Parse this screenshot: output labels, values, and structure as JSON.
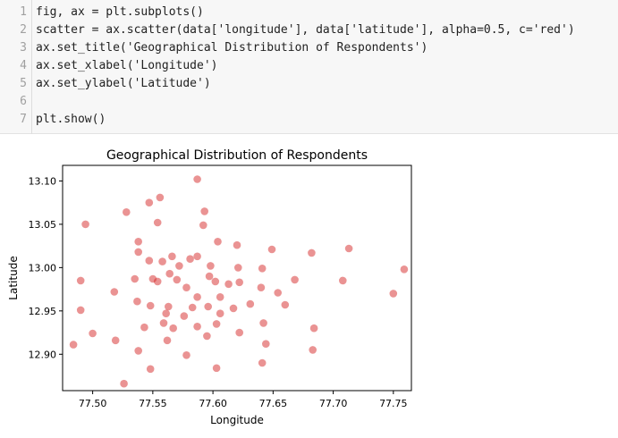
{
  "code_cell": {
    "line_numbers": [
      "1",
      "2",
      "3",
      "4",
      "5",
      "6",
      "7"
    ],
    "lines": [
      "fig, ax = plt.subplots()",
      "scatter = ax.scatter(data['longitude'], data['latitude'], alpha=0.5, c='red')",
      "ax.set_title('Geographical Distribution of Respondents')",
      "ax.set_xlabel('Longitude')",
      "ax.set_ylabel('Latitude')",
      "",
      "plt.show()"
    ]
  },
  "chart_data": {
    "type": "scatter",
    "title": "Geographical Distribution of Respondents",
    "xlabel": "Longitude",
    "ylabel": "Latitude",
    "xlim": [
      77.475,
      77.765
    ],
    "ylim": [
      12.858,
      13.118
    ],
    "xticks": [
      "77.50",
      "77.55",
      "77.60",
      "77.65",
      "77.70",
      "77.75"
    ],
    "yticks": [
      "12.90",
      "12.95",
      "13.00",
      "13.05",
      "13.10"
    ],
    "point_color": "#d62728",
    "alpha": 0.5,
    "grid": false,
    "points": [
      [
        77.587,
        13.102
      ],
      [
        77.528,
        13.064
      ],
      [
        77.547,
        13.075
      ],
      [
        77.556,
        13.081
      ],
      [
        77.593,
        13.065
      ],
      [
        77.592,
        13.049
      ],
      [
        77.494,
        13.05
      ],
      [
        77.554,
        13.052
      ],
      [
        77.538,
        13.03
      ],
      [
        77.604,
        13.03
      ],
      [
        77.62,
        13.026
      ],
      [
        77.649,
        13.021
      ],
      [
        77.713,
        13.022
      ],
      [
        77.538,
        13.018
      ],
      [
        77.682,
        13.017
      ],
      [
        77.566,
        13.013
      ],
      [
        77.587,
        13.013
      ],
      [
        77.581,
        13.01
      ],
      [
        77.547,
        13.008
      ],
      [
        77.558,
        13.007
      ],
      [
        77.572,
        13.002
      ],
      [
        77.598,
        13.002
      ],
      [
        77.621,
        13.0
      ],
      [
        77.641,
        12.999
      ],
      [
        77.759,
        12.998
      ],
      [
        77.564,
        12.993
      ],
      [
        77.597,
        12.99
      ],
      [
        77.55,
        12.987
      ],
      [
        77.535,
        12.987
      ],
      [
        77.49,
        12.985
      ],
      [
        77.57,
        12.986
      ],
      [
        77.602,
        12.984
      ],
      [
        77.668,
        12.986
      ],
      [
        77.708,
        12.985
      ],
      [
        77.554,
        12.984
      ],
      [
        77.613,
        12.981
      ],
      [
        77.622,
        12.983
      ],
      [
        77.578,
        12.977
      ],
      [
        77.64,
        12.977
      ],
      [
        77.654,
        12.971
      ],
      [
        77.518,
        12.972
      ],
      [
        77.75,
        12.97
      ],
      [
        77.606,
        12.966
      ],
      [
        77.587,
        12.966
      ],
      [
        77.537,
        12.961
      ],
      [
        77.563,
        12.955
      ],
      [
        77.548,
        12.956
      ],
      [
        77.596,
        12.955
      ],
      [
        77.631,
        12.958
      ],
      [
        77.617,
        12.953
      ],
      [
        77.66,
        12.957
      ],
      [
        77.583,
        12.954
      ],
      [
        77.49,
        12.951
      ],
      [
        77.561,
        12.947
      ],
      [
        77.576,
        12.944
      ],
      [
        77.606,
        12.947
      ],
      [
        77.642,
        12.936
      ],
      [
        77.559,
        12.936
      ],
      [
        77.603,
        12.935
      ],
      [
        77.587,
        12.932
      ],
      [
        77.543,
        12.931
      ],
      [
        77.567,
        12.93
      ],
      [
        77.622,
        12.925
      ],
      [
        77.684,
        12.93
      ],
      [
        77.5,
        12.924
      ],
      [
        77.595,
        12.921
      ],
      [
        77.562,
        12.916
      ],
      [
        77.519,
        12.916
      ],
      [
        77.644,
        12.912
      ],
      [
        77.484,
        12.911
      ],
      [
        77.538,
        12.904
      ],
      [
        77.683,
        12.905
      ],
      [
        77.578,
        12.899
      ],
      [
        77.641,
        12.89
      ],
      [
        77.548,
        12.883
      ],
      [
        77.603,
        12.884
      ],
      [
        77.526,
        12.866
      ]
    ]
  }
}
